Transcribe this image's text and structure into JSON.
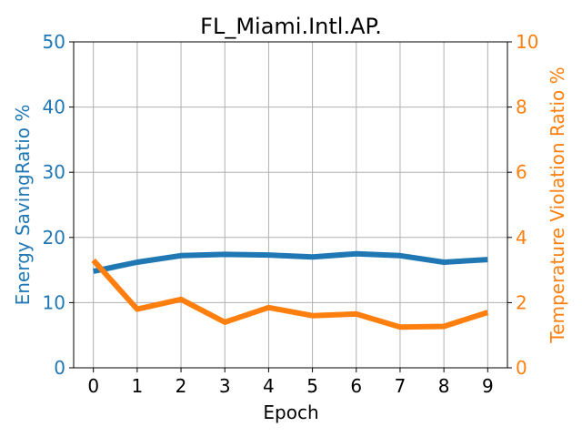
{
  "chart_data": {
    "type": "line",
    "title": "FL_Miami.Intl.AP.",
    "xlabel": "Epoch",
    "ylabel_left": "Energy SavingRatio %",
    "ylabel_right": "Temperature Violation Ratio %",
    "x": [
      0,
      1,
      2,
      3,
      4,
      5,
      6,
      7,
      8,
      9
    ],
    "xlim": [
      -0.45,
      9.45
    ],
    "ylim_left": [
      0,
      50
    ],
    "ylim_right": [
      0,
      10
    ],
    "yticks_left": [
      0,
      10,
      20,
      30,
      40,
      50
    ],
    "yticks_right": [
      0,
      2,
      4,
      6,
      8,
      10
    ],
    "grid": true,
    "colors": {
      "left": "#1f77b4",
      "right": "#ff7f0e"
    },
    "series": [
      {
        "axis": "left",
        "values": [
          14.8,
          16.2,
          17.2,
          17.4,
          17.3,
          17.0,
          17.5,
          17.2,
          16.2,
          16.6
        ]
      },
      {
        "axis": "right",
        "values": [
          3.3,
          1.8,
          2.1,
          1.4,
          1.85,
          1.6,
          1.65,
          1.25,
          1.27,
          1.7
        ]
      }
    ]
  }
}
